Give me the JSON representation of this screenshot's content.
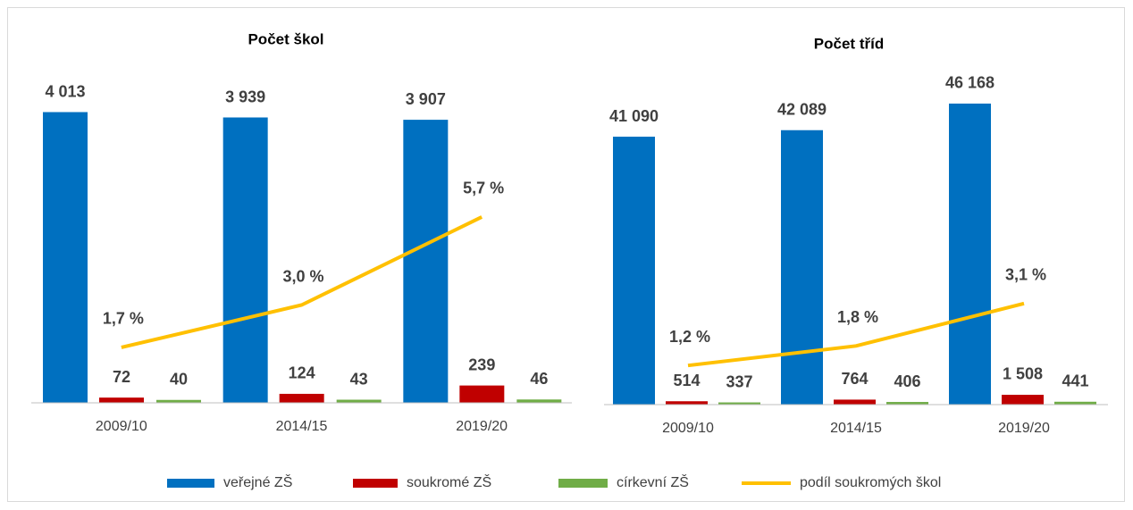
{
  "chart_data": [
    {
      "type": "bar",
      "title": "Počet škol",
      "categories": [
        "2009/10",
        "2014/15",
        "2019/20"
      ],
      "ylim": [
        0,
        4500
      ],
      "y2lim": [
        0,
        10
      ],
      "series": [
        {
          "name": "veřejné ZŠ",
          "color": "#0070c0",
          "values": [
            4013,
            3939,
            3907
          ],
          "value_labels": [
            "4 013",
            "3 939",
            "3 907"
          ]
        },
        {
          "name": "soukromé ZŠ",
          "color": "#c00000",
          "values": [
            72,
            124,
            239
          ]
        },
        {
          "name": "církevní ZŠ",
          "color": "#70ad47",
          "values": [
            40,
            43,
            46
          ]
        },
        {
          "name": "podíl soukromých škol",
          "color": "#ffc000",
          "type": "line",
          "axis": "y2",
          "values": [
            1.7,
            3.0,
            5.7
          ],
          "value_labels": [
            "1,7 %",
            "3,0 %",
            "5,7 %"
          ]
        }
      ]
    },
    {
      "type": "bar",
      "title": "Počet tříd",
      "categories": [
        "2009/10",
        "2014/15",
        "2019/20"
      ],
      "ylim": [
        0,
        50000
      ],
      "y2lim": [
        0,
        10
      ],
      "series": [
        {
          "color": "#0070c0",
          "values": [
            41090,
            42089,
            46168
          ],
          "value_labels": [
            "41 090",
            "42 089",
            "46 168"
          ]
        },
        {
          "color": "#c00000",
          "values": [
            514,
            764,
            1508
          ],
          "value_labels": [
            "514",
            "764",
            "1 508"
          ]
        },
        {
          "color": "#70ad47",
          "values": [
            337,
            406,
            441
          ]
        },
        {
          "color": "#ffc000",
          "type": "line",
          "axis": "y2",
          "values": [
            1.2,
            1.8,
            3.1
          ],
          "value_labels": [
            "1,2 %",
            "1,8 %",
            "3,1 %"
          ]
        }
      ]
    }
  ]
}
